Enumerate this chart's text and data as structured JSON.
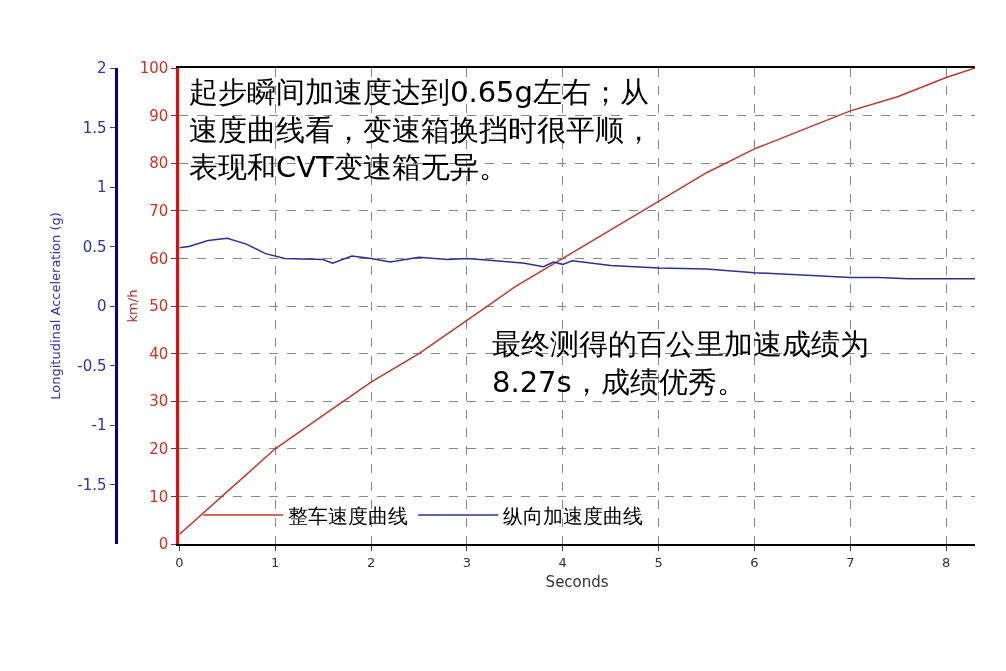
{
  "chart_data": {
    "type": "line",
    "xlabel": "Seconds",
    "ylabel": "km/h",
    "y2label": "Longitudinal Acceleration (g)",
    "xlim": [
      0,
      8.3
    ],
    "xticks": [
      0,
      1,
      2,
      3,
      4,
      5,
      6,
      7,
      8
    ],
    "ylim": [
      0,
      100
    ],
    "yticks": [
      0,
      10,
      20,
      30,
      40,
      50,
      60,
      70,
      80,
      90,
      100
    ],
    "y2lim": [
      -2,
      2
    ],
    "y2ticks": [
      -1.5,
      -1,
      -0.5,
      0,
      0.5,
      1,
      1.5,
      2
    ],
    "grid": true,
    "legend": "bottom",
    "line_style": "solid",
    "series": [
      {
        "name": "整车速度曲线",
        "color": "#c0392b",
        "x": [
          0,
          0.5,
          1,
          1.5,
          2,
          2.5,
          3,
          3.5,
          4,
          4.5,
          5,
          5.5,
          6,
          6.5,
          7,
          7.5,
          8,
          8.3
        ],
        "values": [
          2,
          11,
          20,
          27,
          34,
          40,
          47,
          54,
          60,
          66,
          72,
          78,
          83,
          87,
          91,
          94,
          98,
          100
        ]
      },
      {
        "name": "纵向加速度曲线",
        "color": "#2e3192",
        "axis": "y2",
        "x": [
          0,
          0.1,
          0.3,
          0.5,
          0.7,
          0.9,
          1.1,
          1.5,
          1.6,
          1.8,
          2.0,
          2.2,
          2.5,
          2.8,
          3.0,
          3.3,
          3.6,
          3.8,
          3.9,
          4.0,
          4.1,
          4.5,
          5.0,
          5.5,
          6.0,
          6.5,
          7.0,
          7.3,
          7.6,
          8.0,
          8.3
        ],
        "values": [
          0.49,
          0.5,
          0.55,
          0.57,
          0.52,
          0.44,
          0.4,
          0.39,
          0.36,
          0.42,
          0.4,
          0.37,
          0.41,
          0.39,
          0.4,
          0.38,
          0.36,
          0.33,
          0.37,
          0.35,
          0.38,
          0.34,
          0.32,
          0.31,
          0.28,
          0.26,
          0.24,
          0.24,
          0.23,
          0.23,
          0.23
        ]
      }
    ],
    "annotations": [
      "起步瞬间加速度达到0.65g左右；从速度曲线看，变速箱换挡时很平顺，表现和CVT变速箱无异。",
      "最终测得的百公里加速成绩为8.27s，成绩优秀。"
    ]
  }
}
